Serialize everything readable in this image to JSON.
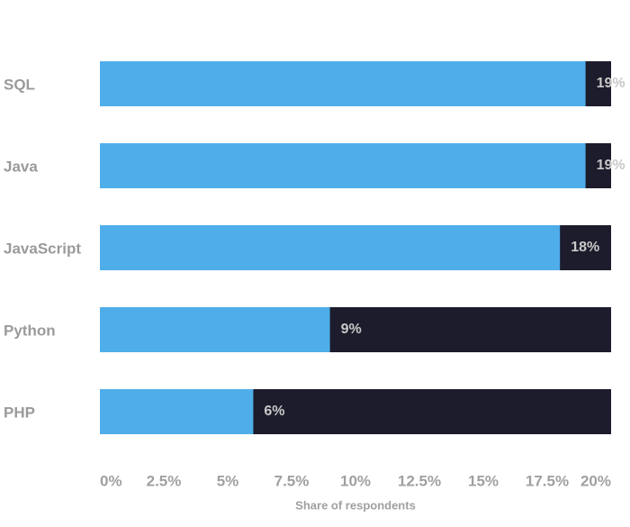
{
  "chart_data": {
    "type": "bar",
    "orientation": "horizontal",
    "categories": [
      "SQL",
      "Java",
      "JavaScript",
      "Python",
      "PHP"
    ],
    "values": [
      19,
      19,
      18,
      9,
      6
    ],
    "value_labels": [
      "19%",
      "19%",
      "18%",
      "9%",
      "6%"
    ],
    "color": "#4faeea",
    "track_color": "#1c1c2c",
    "xlim": [
      0,
      20
    ],
    "xticks": [
      {
        "value": 0,
        "label": "0%"
      },
      {
        "value": 2.5,
        "label": "2.5%"
      },
      {
        "value": 5,
        "label": "5%"
      },
      {
        "value": 7.5,
        "label": "7.5%"
      },
      {
        "value": 10,
        "label": "10%"
      },
      {
        "value": 12.5,
        "label": "12.5%"
      },
      {
        "value": 15,
        "label": "15%"
      },
      {
        "value": 17.5,
        "label": "17.5%"
      },
      {
        "value": 20,
        "label": "20%"
      }
    ],
    "xlabel": "Share of respondents"
  }
}
